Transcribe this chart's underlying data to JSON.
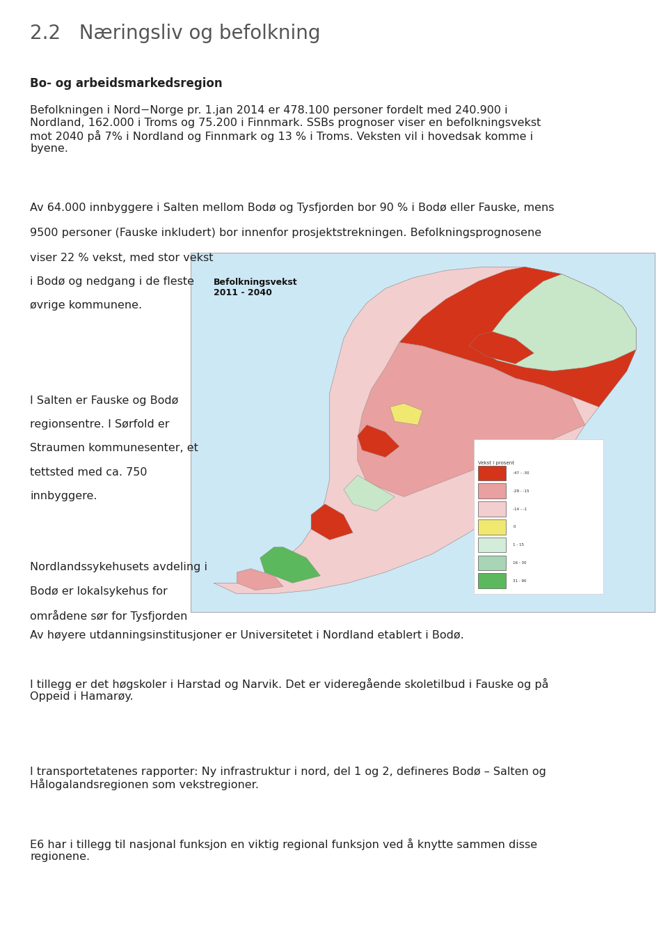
{
  "title": "2.2   Næringsliv og befolkning",
  "title_fontsize": 20,
  "title_color": "#555555",
  "subtitle_bold": "Bo- og arbeidsmarkedsregion",
  "subtitle_fontsize": 12,
  "body_fontsize": 11.5,
  "body_color": "#222222",
  "background_color": "#ffffff",
  "paragraph1": "Befolkningen i Nord−Norge pr. 1.jan 2014 er 478.100 personer fordelt med 240.900 i\nNordland, 162.000 i Troms og 75.200 i Finnmark. SSBs prognoser viser en befolkningsvekst\nmot 2040 på 7% i Nordland og Finnmark og 13 % i Troms. Veksten vil i hovedsak komme i\nbyene.",
  "full_line1": "Av 64.000 innbyggere i Salten mellom Bodø og Tysfjorden bor 90 % i Bodø eller Fauske, mens",
  "full_line2": "9500 personer (Fauske inkludert) bor innenfor prosjektstrekningen. Befolkningsprognosene",
  "left_col_lines": [
    "viser 22 % vekst, med stor vekst",
    "i Bodø og nedgang i de fleste",
    "øvrige kommunene.",
    "",
    "",
    "",
    "I Salten er Fauske og Bodø",
    "regionsentre. I Sørfold er",
    "Straumen kommunesenter, et",
    "tettsted med ca. 750",
    "innbyggere.",
    "",
    "",
    "Nordlandssykehusets avdeling i",
    "Bodø er lokalsykehus for",
    "områdene sør for Tysfjorden"
  ],
  "bottom_paragraphs": [
    "Av høyere utdanningsinstitusjoner er Universitetet i Nordland etablert i Bodø.",
    "I tillegg er det høgskoler i Harstad og Narvik. Det er videregående skoletilbud i Fauske og på\nOppeid i Hamarøy.",
    "I transportetatenes rapporter: Ny infrastruktur i nord, del 1 og 2, defineres Bodø – Salten og\nHålogalandsregionen som vekstregioner.",
    "E6 har i tillegg til nasjonal funksjon en viktig regional funksjon ved å knytte sammen disse\nregionene."
  ],
  "map_title": "Befolkningsvekst\n2011 - 2040",
  "legend_title": "Vekst i prosent",
  "legend_entries": [
    [
      "-47 - -30",
      "#d4341a"
    ],
    [
      "-29 - -15",
      "#e8a0a0"
    ],
    [
      "-14 - -1",
      "#f2cece"
    ],
    [
      "0",
      "#f0e870"
    ],
    [
      "1 - 15",
      "#d4edda"
    ],
    [
      "16 - 30",
      "#a8d5b5"
    ],
    [
      "31 - 90",
      "#5cb85c"
    ]
  ]
}
